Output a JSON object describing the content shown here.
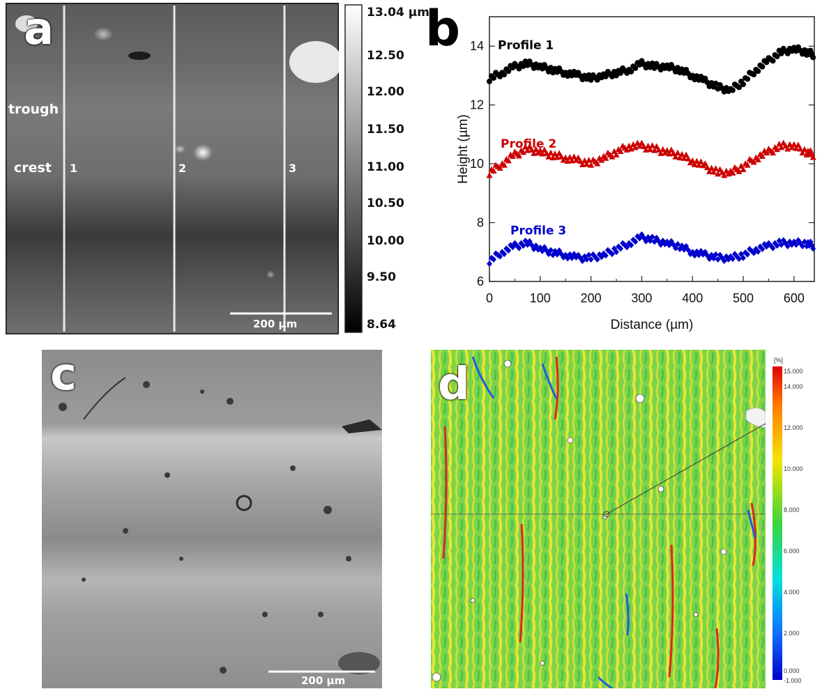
{
  "panel_a": {
    "letter": "a",
    "labels": {
      "trough": "trough",
      "crest": "crest"
    },
    "profile_lines": [
      "1",
      "2",
      "3"
    ],
    "scale_bar": "200 µm",
    "colorbar_ticks": [
      "13.04 µm",
      "12.50",
      "12.00",
      "11.50",
      "11.00",
      "10.50",
      "10.00",
      "9.50",
      "8.64"
    ]
  },
  "panel_b": {
    "letter": "b"
  },
  "panel_c": {
    "letter": "c",
    "scale_bar": "200 µm"
  },
  "panel_d": {
    "letter": "d",
    "colorbar_unit": "[%]",
    "colorbar_ticks": [
      "15.000",
      "14.000",
      "12.000",
      "10.000",
      "8.000",
      "6.000",
      "4.000",
      "2.000",
      "0.000",
      "-1.000"
    ]
  },
  "chart_data": {
    "type": "scatter",
    "xlabel": "Distance (µm)",
    "ylabel": "Height (µm)",
    "xlim": [
      0,
      640
    ],
    "ylim": [
      6,
      15
    ],
    "xticks": [
      "0",
      "100",
      "200",
      "300",
      "400",
      "500",
      "600"
    ],
    "yticks": [
      "6",
      "8",
      "10",
      "12",
      "14"
    ],
    "series": [
      {
        "name": "Profile 1",
        "color": "#000000",
        "marker": "circle",
        "x": [
          0,
          25,
          50,
          75,
          100,
          125,
          150,
          175,
          200,
          225,
          250,
          275,
          300,
          325,
          350,
          375,
          400,
          425,
          450,
          475,
          500,
          525,
          550,
          575,
          600,
          625,
          640
        ],
        "y": [
          12.9,
          13.1,
          13.3,
          13.4,
          13.3,
          13.2,
          13.1,
          13.0,
          12.9,
          13.0,
          13.1,
          13.2,
          13.4,
          13.3,
          13.3,
          13.2,
          13.0,
          12.8,
          12.6,
          12.5,
          12.8,
          13.2,
          13.5,
          13.8,
          13.9,
          13.8,
          13.7
        ]
      },
      {
        "name": "Profile 2",
        "color": "#cc0000",
        "marker": "triangle",
        "x": [
          0,
          25,
          50,
          75,
          100,
          125,
          150,
          175,
          200,
          225,
          250,
          275,
          300,
          325,
          350,
          375,
          400,
          425,
          450,
          475,
          500,
          525,
          550,
          575,
          600,
          625,
          640
        ],
        "y": [
          9.7,
          10.0,
          10.3,
          10.5,
          10.4,
          10.3,
          10.2,
          10.1,
          10.0,
          10.2,
          10.4,
          10.6,
          10.6,
          10.5,
          10.4,
          10.3,
          10.1,
          9.9,
          9.7,
          9.7,
          9.9,
          10.2,
          10.4,
          10.6,
          10.6,
          10.4,
          10.3
        ]
      },
      {
        "name": "Profile 3",
        "color": "#0000cc",
        "marker": "diamond",
        "x": [
          0,
          25,
          50,
          75,
          100,
          125,
          150,
          175,
          200,
          225,
          250,
          275,
          300,
          325,
          350,
          375,
          400,
          425,
          450,
          475,
          500,
          525,
          550,
          575,
          600,
          625,
          640
        ],
        "y": [
          6.7,
          7.0,
          7.2,
          7.3,
          7.1,
          7.0,
          6.9,
          6.8,
          6.8,
          6.9,
          7.1,
          7.3,
          7.5,
          7.4,
          7.3,
          7.2,
          7.0,
          6.9,
          6.8,
          6.8,
          6.9,
          7.1,
          7.2,
          7.3,
          7.3,
          7.3,
          7.2
        ]
      }
    ]
  }
}
